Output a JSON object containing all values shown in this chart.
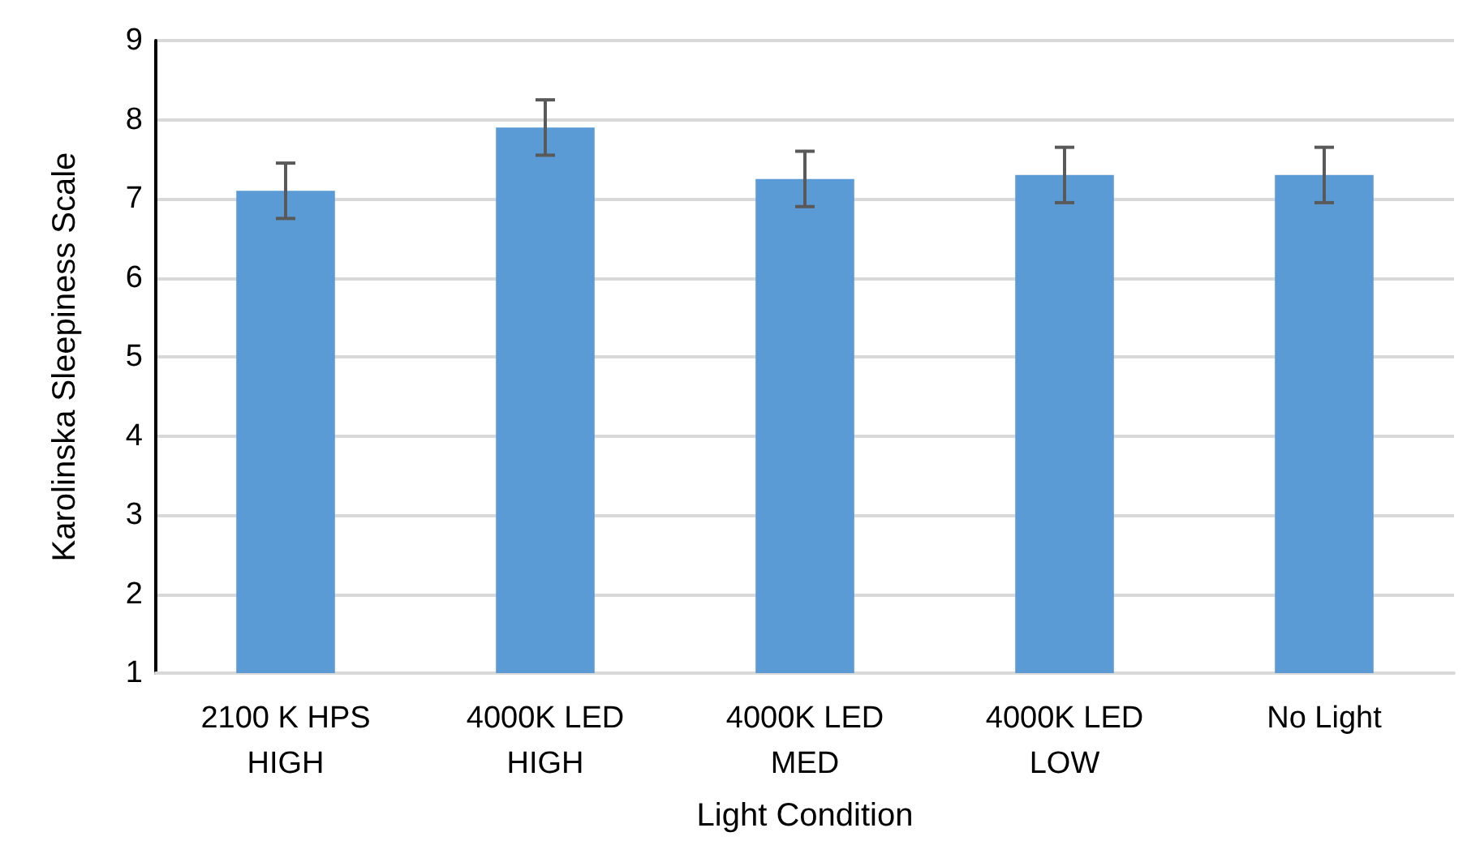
{
  "chart_data": {
    "type": "bar",
    "xlabel": "Light Condition",
    "ylabel": "Karolinska Sleepiness Scale",
    "categories": [
      "2100 K HPS\nHIGH",
      "4000K LED\nHIGH",
      "4000K LED\nMED",
      "4000K LED\nLOW",
      "No Light"
    ],
    "values": [
      7.1,
      7.9,
      7.25,
      7.3,
      7.3
    ],
    "errors": [
      0.35,
      0.35,
      0.35,
      0.35,
      0.35
    ],
    "color": "#5b9bd5",
    "ylim": [
      1,
      9
    ],
    "yticks": [
      1,
      2,
      3,
      4,
      5,
      6,
      7,
      8,
      9
    ],
    "grid": "y"
  }
}
